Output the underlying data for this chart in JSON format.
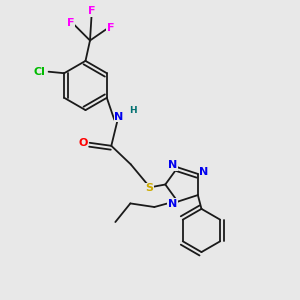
{
  "bg_color": "#e8e8e8",
  "bond_color": "#1a1a1a",
  "atom_colors": {
    "F": "#ff00ff",
    "Cl": "#00bb00",
    "N": "#0000ee",
    "O": "#ff0000",
    "S": "#ccaa00",
    "H": "#007070",
    "C": "#1a1a1a"
  },
  "figsize": [
    3.0,
    3.0
  ],
  "dpi": 100
}
